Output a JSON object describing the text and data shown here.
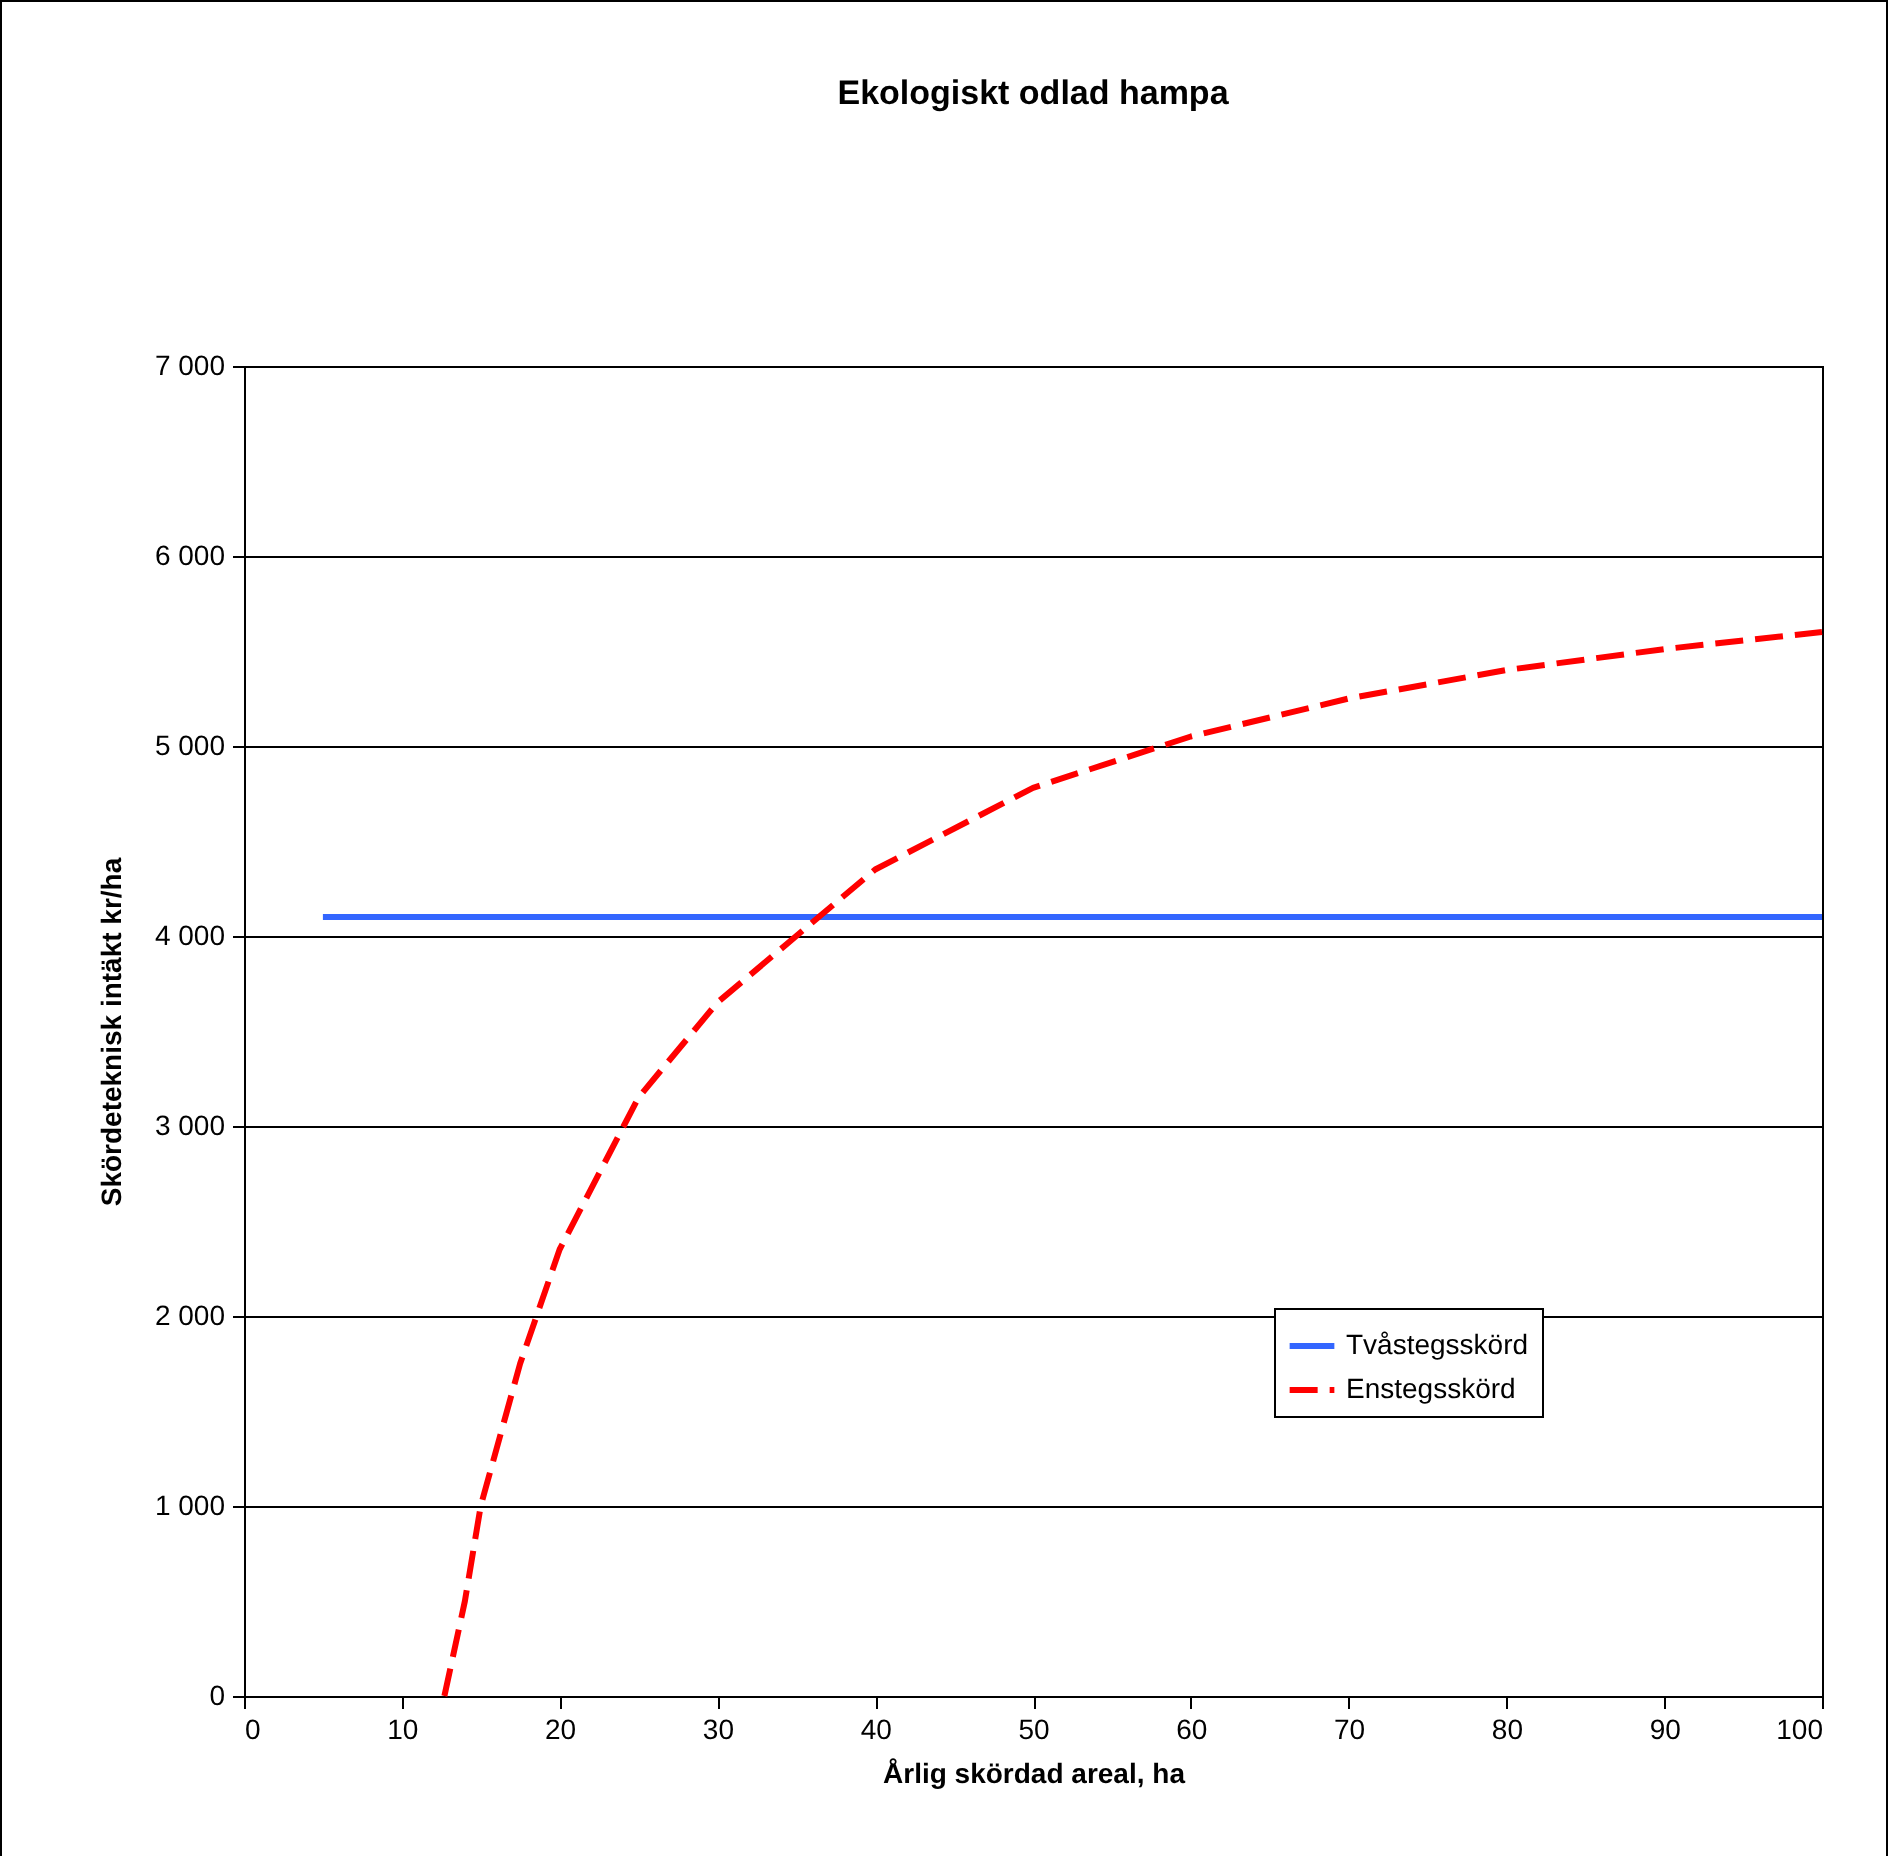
{
  "chart_data": {
    "type": "line",
    "title": "Ekologiskt odlad hampa",
    "xlabel": "Årlig skördad areal, ha",
    "ylabel": "Skördeteknisk intäkt kr/ha",
    "xlim": [
      0,
      100
    ],
    "xticks": [
      0,
      10,
      20,
      30,
      40,
      50,
      60,
      70,
      80,
      90,
      100
    ],
    "ylim": [
      0,
      7000
    ],
    "yticks": [
      {
        "value": 0,
        "label": "0"
      },
      {
        "value": 1000,
        "label": "1 000"
      },
      {
        "value": 2000,
        "label": "2 000"
      },
      {
        "value": 3000,
        "label": "3 000"
      },
      {
        "value": 4000,
        "label": "4 000"
      },
      {
        "value": 5000,
        "label": "5 000"
      },
      {
        "value": 6000,
        "label": "6 000"
      },
      {
        "value": 7000,
        "label": "7 000"
      }
    ],
    "grid": "y",
    "legend": "bottom right",
    "marker": "none",
    "series": [
      {
        "name": "Tvåstegsskörd",
        "color": "#3366ff",
        "line_style": "solid",
        "x": [
          5,
          100
        ],
        "values": [
          4100,
          4100
        ]
      },
      {
        "name": "Enstegsskörd",
        "color": "#ff0000",
        "line_style": "dashed",
        "x": [
          12.7,
          14,
          15,
          17.5,
          20,
          25,
          30,
          35,
          40,
          50,
          60,
          70,
          80,
          90,
          100
        ],
        "values": [
          0,
          500,
          1000,
          1750,
          2350,
          3150,
          3650,
          4000,
          4350,
          4780,
          5050,
          5250,
          5400,
          5510,
          5600
        ]
      }
    ]
  }
}
